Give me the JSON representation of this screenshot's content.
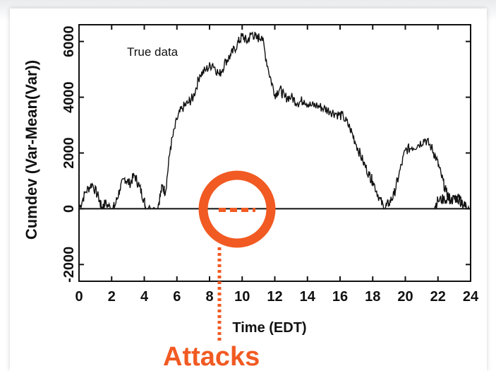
{
  "chart_data": {
    "type": "line",
    "title": "",
    "xlabel": "Time (EDT)",
    "ylabel": "Cumdev (Var-Mean(Var))",
    "xlim": [
      0,
      24
    ],
    "ylim": [
      -2600,
      6600
    ],
    "x_ticks": [
      "0",
      "2",
      "4",
      "6",
      "8",
      "10",
      "12",
      "14",
      "16",
      "18",
      "20",
      "22",
      "24"
    ],
    "y_ticks": [
      "-2000",
      "0",
      "2000",
      "4000",
      "6000"
    ],
    "annotations": {
      "series_label": "True data",
      "callout": "Attacks"
    },
    "colors": {
      "line": "#111111",
      "accent": "#f15a22"
    },
    "series": [
      {
        "name": "True data",
        "x": [
          0.0,
          0.4,
          0.8,
          1.2,
          1.4,
          1.6,
          2.0,
          2.2,
          2.5,
          2.8,
          3.1,
          3.4,
          3.7,
          4.0,
          4.1,
          4.8,
          5.1,
          5.3,
          5.6,
          6.0,
          6.3,
          6.7,
          7.0,
          7.4,
          7.8,
          8.2,
          8.6,
          9.0,
          9.3,
          9.7,
          10.0,
          10.3,
          10.6,
          10.9,
          11.2,
          11.6,
          12.0,
          12.3,
          12.6,
          13.0,
          13.4,
          13.8,
          14.2,
          14.6,
          15.0,
          15.4,
          15.8,
          16.2,
          16.6,
          17.0,
          17.4,
          17.8,
          18.0,
          18.4,
          18.7,
          19.0,
          19.3,
          19.6,
          20.0,
          20.4,
          20.8,
          21.2,
          21.6,
          21.9,
          22.2,
          22.5,
          22.8,
          23.1,
          23.5,
          23.8
        ],
        "y": [
          0,
          600,
          900,
          400,
          0,
          200,
          0,
          100,
          700,
          1100,
          900,
          1200,
          800,
          300,
          0,
          0,
          800,
          600,
          2200,
          3200,
          3600,
          3800,
          4000,
          4800,
          5000,
          5200,
          4800,
          5300,
          5500,
          5900,
          6200,
          6000,
          6300,
          6100,
          6200,
          5000,
          4100,
          4300,
          4000,
          4000,
          3800,
          3900,
          3700,
          3700,
          3600,
          3500,
          3400,
          3300,
          2900,
          2300,
          1700,
          1200,
          1000,
          400,
          0,
          200,
          500,
          1200,
          2100,
          2200,
          2300,
          2500,
          2200,
          1800,
          1200,
          600,
          300,
          400,
          200,
          0
        ]
      },
      {
        "name": "True data",
        "x": [
          21.7,
          22.0,
          22.4,
          22.8,
          23.2,
          23.6,
          23.9
        ],
        "y": [
          0,
          300,
          350,
          300,
          400,
          150,
          0
        ]
      }
    ],
    "grid": false,
    "legend": "none"
  }
}
